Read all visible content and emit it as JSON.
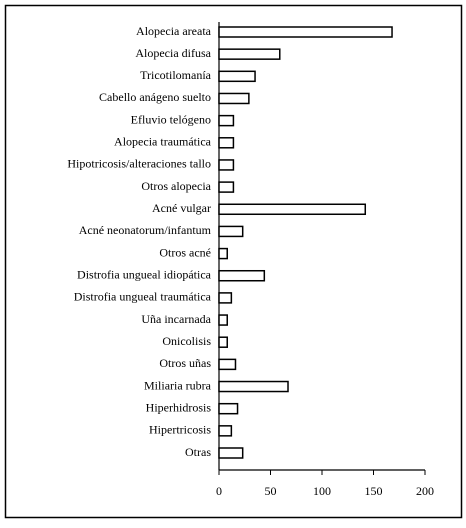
{
  "chart_data": {
    "type": "bar",
    "orientation": "horizontal",
    "categories": [
      "Alopecia areata",
      "Alopecia difusa",
      "Tricotilomanía",
      "Cabello anágeno suelto",
      "Efluvio telógeno",
      "Alopecia traumática",
      "Hipotricosis/alteraciones tallo",
      "Otros alopecia",
      "Acné vulgar",
      "Acné neonatorum/infantum",
      "Otros acné",
      "Distrofia ungueal idiopática",
      "Distrofia ungueal traumática",
      "Uña incarnada",
      "Onicolisis",
      "Otros uñas",
      "Miliaria rubra",
      "Hiperhidrosis",
      "Hipertricosis",
      "Otras"
    ],
    "values": [
      168,
      59,
      35,
      29,
      14,
      14,
      14,
      14,
      142,
      23,
      8,
      44,
      12,
      8,
      8,
      16,
      67,
      18,
      12,
      23
    ],
    "color": "#ffffff",
    "xlim": [
      0,
      200
    ],
    "xticks": [
      0,
      50,
      100,
      150,
      200
    ],
    "grid": false
  }
}
